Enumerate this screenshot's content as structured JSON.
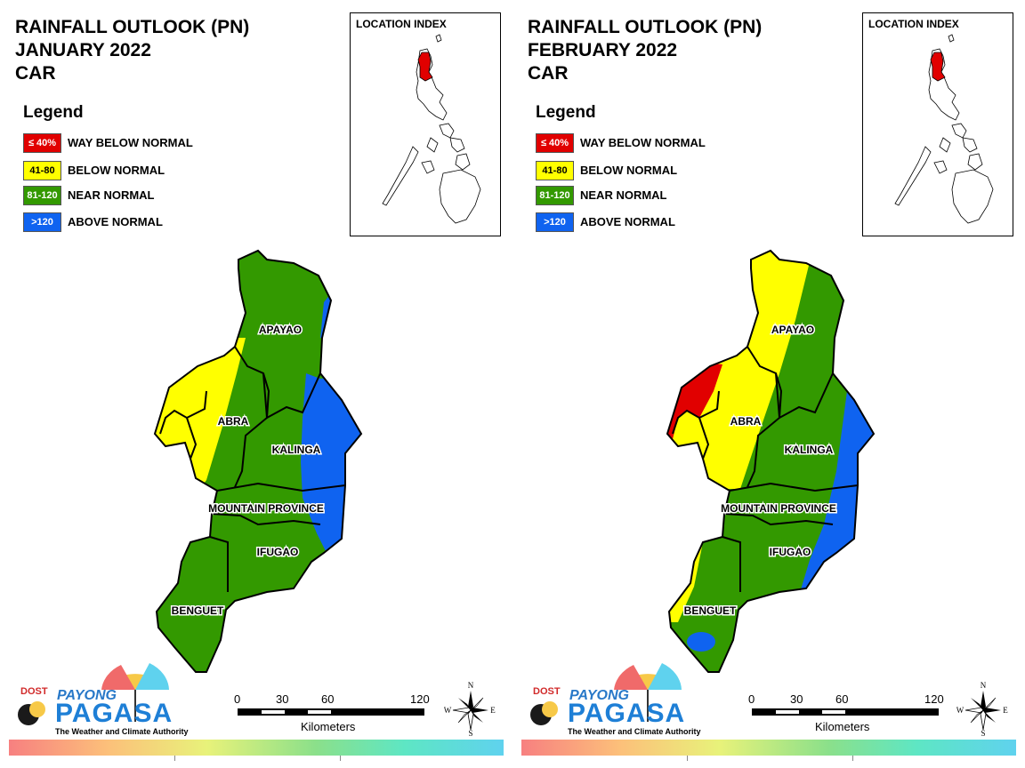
{
  "colors": {
    "way_below": "#e10000",
    "below": "#ffff00",
    "near": "#339900",
    "above": "#0f63f0"
  },
  "legend": {
    "title": "Legend",
    "items": [
      {
        "range": "≤ 40%",
        "label": "WAY BELOW NORMAL",
        "color": "#e10000",
        "text_color": "#ffffff"
      },
      {
        "range": "41-80",
        "label": "BELOW NORMAL",
        "color": "#ffff00",
        "text_color": "#000000"
      },
      {
        "range": "81-120",
        "label": "NEAR NORMAL",
        "color": "#339900",
        "text_color": "#ffffff"
      },
      {
        "range": ">120",
        "label": "ABOVE NORMAL",
        "color": "#0f63f0",
        "text_color": "#ffffff"
      }
    ]
  },
  "inset": {
    "title": "LOCATION INDEX"
  },
  "scale": {
    "ticks": [
      "0",
      "30",
      "60",
      "120"
    ],
    "unit": "Kilometers"
  },
  "compass": {
    "n": "N",
    "s": "S",
    "e": "E",
    "w": "W"
  },
  "logo": {
    "dost": "DOST",
    "payong": "PAYONG",
    "pagasa": "PAGASA",
    "tagline": "The Weather and Climate Authority"
  },
  "provinces": {
    "apayao": "APAYAO",
    "abra": "ABRA",
    "kalinga": "KALINGA",
    "mountain_province": "MOUNTAIN PROVINCE",
    "ifugao": "IFUGAO",
    "benguet": "BENGUET"
  },
  "panels": [
    {
      "title_line1": "RAINFALL OUTLOOK (PN)",
      "title_line2": "JANUARY 2022",
      "title_line3": "CAR",
      "categories": {
        "apayao": "near, small above-normal strip on east edge",
        "abra": "below on west half, near on east",
        "kalinga": "near on west, above on east",
        "mountain_province": "near, above on east",
        "ifugao": "near, above on east",
        "benguet": "near"
      }
    },
    {
      "title_line1": "RAINFALL OUTLOOK (PN)",
      "title_line2": "FEBRUARY 2022",
      "title_line3": "CAR",
      "categories": {
        "apayao": "below on west, near on east",
        "abra": "way below on far west, below mostly",
        "kalinga": "near on west, above on east",
        "mountain_province": "near, above on east",
        "ifugao": "near, above on east",
        "benguet": "near, below on west edge, small above patch"
      }
    }
  ]
}
